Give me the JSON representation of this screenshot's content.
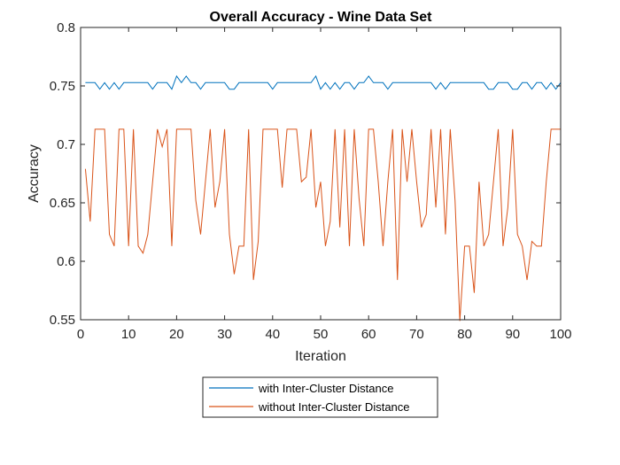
{
  "chart_data": {
    "type": "line",
    "title": "Overall Accuracy - Wine Data Set",
    "xlabel": "Iteration",
    "ylabel": "Accuracy",
    "xlim": [
      0,
      100
    ],
    "ylim": [
      0.55,
      0.8
    ],
    "xticks": [
      0,
      10,
      20,
      30,
      40,
      50,
      60,
      70,
      80,
      90,
      100
    ],
    "xtick_labels": [
      "0",
      "10",
      "20",
      "30",
      "40",
      "50",
      "60",
      "70",
      "80",
      "90",
      "100"
    ],
    "yticks": [
      0.55,
      0.6,
      0.65,
      0.7,
      0.75,
      0.8
    ],
    "ytick_labels": [
      "0.55",
      "0.6",
      "0.65",
      "0.7",
      "0.75",
      "0.8"
    ],
    "grid": false,
    "legend_position": "below-center",
    "x": [
      1,
      2,
      3,
      4,
      5,
      6,
      7,
      8,
      9,
      10,
      11,
      12,
      13,
      14,
      15,
      16,
      17,
      18,
      19,
      20,
      21,
      22,
      23,
      24,
      25,
      26,
      27,
      28,
      29,
      30,
      31,
      32,
      33,
      34,
      35,
      36,
      37,
      38,
      39,
      40,
      41,
      42,
      43,
      44,
      45,
      46,
      47,
      48,
      49,
      50,
      51,
      52,
      53,
      54,
      55,
      56,
      57,
      58,
      59,
      60,
      61,
      62,
      63,
      64,
      65,
      66,
      67,
      68,
      69,
      70,
      71,
      72,
      73,
      74,
      75,
      76,
      77,
      78,
      79,
      80,
      81,
      82,
      83,
      84,
      85,
      86,
      87,
      88,
      89,
      90,
      91,
      92,
      93,
      94,
      95,
      96,
      97,
      98,
      99,
      100
    ],
    "series": [
      {
        "name": "with Inter-Cluster Distance",
        "color": "#0072BD",
        "values": [
          0.7528,
          0.7528,
          0.7528,
          0.7472,
          0.7528,
          0.7472,
          0.7528,
          0.7472,
          0.7528,
          0.7528,
          0.7528,
          0.7528,
          0.7528,
          0.7528,
          0.7472,
          0.7528,
          0.7528,
          0.7528,
          0.7472,
          0.7584,
          0.7528,
          0.7584,
          0.7528,
          0.7528,
          0.7472,
          0.7528,
          0.7528,
          0.7528,
          0.7528,
          0.7528,
          0.7472,
          0.7472,
          0.7528,
          0.7528,
          0.7528,
          0.7528,
          0.7528,
          0.7528,
          0.7528,
          0.7472,
          0.7528,
          0.7528,
          0.7528,
          0.7528,
          0.7528,
          0.7528,
          0.7528,
          0.7528,
          0.7584,
          0.7472,
          0.7528,
          0.7472,
          0.7528,
          0.7472,
          0.7528,
          0.7528,
          0.7472,
          0.7528,
          0.7528,
          0.7584,
          0.7528,
          0.7528,
          0.7528,
          0.7472,
          0.7528,
          0.7528,
          0.7528,
          0.7528,
          0.7528,
          0.7528,
          0.7528,
          0.7528,
          0.7528,
          0.7472,
          0.7528,
          0.7472,
          0.7528,
          0.7528,
          0.7528,
          0.7528,
          0.7528,
          0.7528,
          0.7528,
          0.7528,
          0.7472,
          0.7472,
          0.7528,
          0.7528,
          0.7528,
          0.7472,
          0.7472,
          0.7528,
          0.7528,
          0.7472,
          0.7528,
          0.7528,
          0.7472,
          0.7528,
          0.7472,
          0.7528
        ]
      },
      {
        "name": "without Inter-Cluster Distance",
        "color": "#D95319",
        "values": [
          0.679,
          0.634,
          0.713,
          0.713,
          0.713,
          0.623,
          0.613,
          0.713,
          0.713,
          0.613,
          0.713,
          0.613,
          0.607,
          0.623,
          0.668,
          0.713,
          0.698,
          0.713,
          0.613,
          0.713,
          0.713,
          0.713,
          0.713,
          0.652,
          0.623,
          0.668,
          0.713,
          0.646,
          0.668,
          0.713,
          0.623,
          0.589,
          0.613,
          0.613,
          0.713,
          0.584,
          0.617,
          0.713,
          0.713,
          0.713,
          0.713,
          0.663,
          0.713,
          0.713,
          0.713,
          0.668,
          0.672,
          0.713,
          0.646,
          0.668,
          0.613,
          0.634,
          0.713,
          0.629,
          0.713,
          0.613,
          0.713,
          0.654,
          0.613,
          0.713,
          0.713,
          0.668,
          0.613,
          0.668,
          0.713,
          0.584,
          0.713,
          0.668,
          0.713,
          0.668,
          0.629,
          0.64,
          0.713,
          0.646,
          0.713,
          0.623,
          0.713,
          0.652,
          0.549,
          0.613,
          0.613,
          0.573,
          0.668,
          0.613,
          0.623,
          0.668,
          0.713,
          0.613,
          0.646,
          0.713,
          0.623,
          0.613,
          0.584,
          0.617,
          0.613,
          0.613,
          0.668,
          0.713,
          0.713,
          0.713
        ]
      }
    ]
  },
  "legend": {
    "items": [
      {
        "label": "with Inter-Cluster Distance",
        "color": "#0072BD"
      },
      {
        "label": "without Inter-Cluster Distance",
        "color": "#D95319"
      }
    ]
  }
}
